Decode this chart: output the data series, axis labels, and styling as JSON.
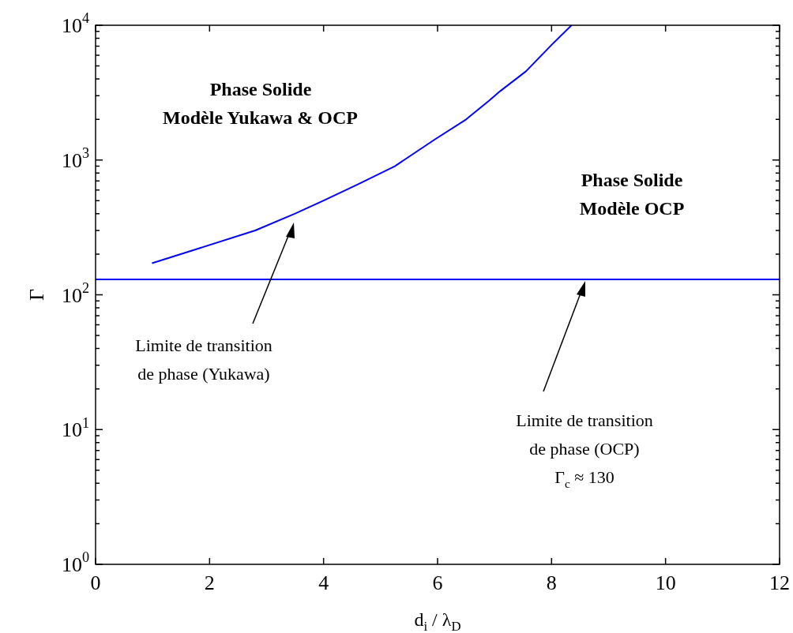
{
  "chart_data": {
    "type": "line",
    "xlabel": "d$_{i}$ / λ$_{D}$",
    "ylabel": "Γ",
    "log": "y",
    "grid": false,
    "legend": false,
    "marker": "none",
    "line_style": "solid",
    "xlim": [
      0,
      12
    ],
    "xticks": [
      0,
      2,
      4,
      6,
      8,
      10,
      12
    ],
    "ylim": [
      1,
      10000
    ],
    "yticks": [
      {
        "value": 1,
        "label": "10$^{0}$"
      },
      {
        "value": 2,
        "label": null
      },
      {
        "value": 3,
        "label": null
      },
      {
        "value": 4,
        "label": null
      },
      {
        "value": 5,
        "label": null
      },
      {
        "value": 6,
        "label": null
      },
      {
        "value": 7,
        "label": null
      },
      {
        "value": 8,
        "label": null
      },
      {
        "value": 9,
        "label": null
      },
      {
        "value": 10,
        "label": "10$^{1}$"
      },
      {
        "value": 20,
        "label": null
      },
      {
        "value": 30,
        "label": null
      },
      {
        "value": 40,
        "label": null
      },
      {
        "value": 50,
        "label": null
      },
      {
        "value": 60,
        "label": null
      },
      {
        "value": 70,
        "label": null
      },
      {
        "value": 80,
        "label": null
      },
      {
        "value": 90,
        "label": null
      },
      {
        "value": 100,
        "label": "10$^{2}$"
      },
      {
        "value": 200,
        "label": null
      },
      {
        "value": 300,
        "label": null
      },
      {
        "value": 400,
        "label": null
      },
      {
        "value": 500,
        "label": null
      },
      {
        "value": 600,
        "label": null
      },
      {
        "value": 700,
        "label": null
      },
      {
        "value": 800,
        "label": null
      },
      {
        "value": 900,
        "label": null
      },
      {
        "value": 1000,
        "label": "10$^{3}$"
      },
      {
        "value": 2000,
        "label": null
      },
      {
        "value": 3000,
        "label": null
      },
      {
        "value": 4000,
        "label": null
      },
      {
        "value": 5000,
        "label": null
      },
      {
        "value": 6000,
        "label": null
      },
      {
        "value": 7000,
        "label": null
      },
      {
        "value": 8000,
        "label": null
      },
      {
        "value": 9000,
        "label": null
      },
      {
        "value": 10000,
        "label": "10$^{4}$"
      }
    ],
    "series": [
      {
        "color": "#0000ff",
        "x": [
          1.0,
          1.8,
          2.8,
          3.5,
          4.0,
          4.6,
          5.25,
          5.95,
          6.5,
          6.9,
          7.1,
          7.55,
          8.0,
          8.35
        ],
        "values": [
          172,
          220,
          300,
          400,
          500,
          660,
          900,
          1420,
          2000,
          2750,
          3250,
          4550,
          7150,
          10000
        ]
      }
    ],
    "ref_lines": [
      {
        "axis": "y",
        "value": 130,
        "color": "#0000ff"
      }
    ],
    "annotations": [
      "Phase Solide\nModèle Yukawa & OCP",
      "Phase Solide\nModèle OCP",
      "Limite de transition\nde phase (Yukawa)",
      "Limite de transition\nde phase (OCP)\nΓ$_{c}$ ≈ 130"
    ]
  }
}
